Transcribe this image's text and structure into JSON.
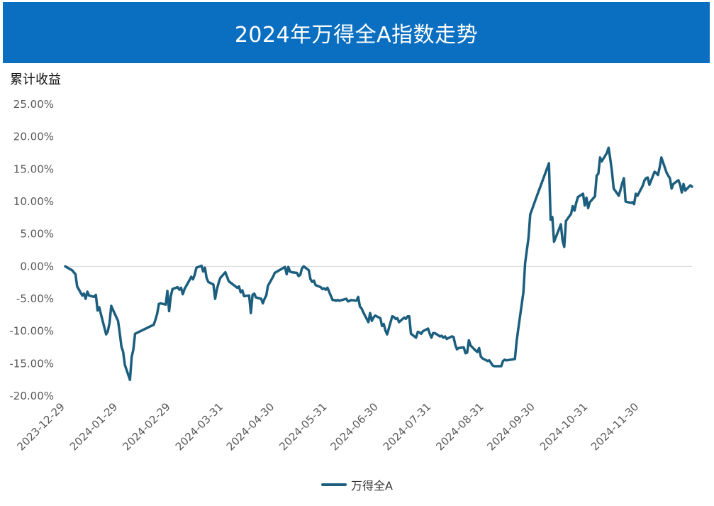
{
  "chart_data": {
    "type": "line",
    "title": "2024年万得全A指数走势",
    "ylabel": "累计收益",
    "xlabel": "",
    "ylim": [
      -20,
      25
    ],
    "yticks": [
      25,
      20,
      15,
      10,
      5,
      0,
      -5,
      -10,
      -15,
      -20
    ],
    "ytick_labels": [
      "25.00%",
      "20.00%",
      "15.00%",
      "10.00%",
      "5.00%",
      "0.00%",
      "-5.00%",
      "-10.00%",
      "-15.00%",
      "-20.00%"
    ],
    "xlim": [
      "2023-12-29",
      "2024-12-31"
    ],
    "xticks": [
      "2023-12-29",
      "2024-01-29",
      "2024-02-29",
      "2024-03-31",
      "2024-04-30",
      "2024-05-31",
      "2024-06-30",
      "2024-07-31",
      "2024-08-31",
      "2024-09-30",
      "2024-10-31",
      "2024-11-30"
    ],
    "legend_position": "bottom",
    "line_color": "#1B5E7E",
    "header_color": "#0B6FC1",
    "grid": false,
    "zero_line": true,
    "series": [
      {
        "name": "万得全A",
        "points": [
          [
            "2023-12-29",
            0.0
          ],
          [
            "2024-01-02",
            -0.6
          ],
          [
            "2024-01-04",
            -1.2
          ],
          [
            "2024-01-05",
            -3.1
          ],
          [
            "2024-01-08",
            -4.5
          ],
          [
            "2024-01-09",
            -4.2
          ],
          [
            "2024-01-10",
            -5.0
          ],
          [
            "2024-01-11",
            -3.9
          ],
          [
            "2024-01-12",
            -4.5
          ],
          [
            "2024-01-15",
            -4.7
          ],
          [
            "2024-01-16",
            -4.4
          ],
          [
            "2024-01-17",
            -6.8
          ],
          [
            "2024-01-18",
            -6.3
          ],
          [
            "2024-01-19",
            -7.4
          ],
          [
            "2024-01-22",
            -10.5
          ],
          [
            "2024-01-23",
            -10.0
          ],
          [
            "2024-01-24",
            -8.7
          ],
          [
            "2024-01-25",
            -6.1
          ],
          [
            "2024-01-26",
            -6.7
          ],
          [
            "2024-01-29",
            -8.4
          ],
          [
            "2024-01-30",
            -10.3
          ],
          [
            "2024-01-31",
            -12.4
          ],
          [
            "2024-02-01",
            -13.2
          ],
          [
            "2024-02-02",
            -15.2
          ],
          [
            "2024-02-05",
            -17.5
          ],
          [
            "2024-02-06",
            -14.0
          ],
          [
            "2024-02-07",
            -12.8
          ],
          [
            "2024-02-08",
            -10.4
          ],
          [
            "2024-02-19",
            -9.0
          ],
          [
            "2024-02-20",
            -8.2
          ],
          [
            "2024-02-21",
            -7.3
          ],
          [
            "2024-02-22",
            -5.8
          ],
          [
            "2024-02-23",
            -5.7
          ],
          [
            "2024-02-26",
            -5.9
          ],
          [
            "2024-02-27",
            -3.8
          ],
          [
            "2024-02-28",
            -6.9
          ],
          [
            "2024-02-29",
            -4.6
          ],
          [
            "2024-03-01",
            -3.5
          ],
          [
            "2024-03-04",
            -3.2
          ],
          [
            "2024-03-05",
            -3.6
          ],
          [
            "2024-03-06",
            -3.3
          ],
          [
            "2024-03-07",
            -4.3
          ],
          [
            "2024-03-08",
            -3.5
          ],
          [
            "2024-03-11",
            -2.1
          ],
          [
            "2024-03-12",
            -1.6
          ],
          [
            "2024-03-13",
            -2.0
          ],
          [
            "2024-03-14",
            -1.3
          ],
          [
            "2024-03-15",
            -0.2
          ],
          [
            "2024-03-18",
            0.1
          ],
          [
            "2024-03-19",
            -0.8
          ],
          [
            "2024-03-20",
            -0.2
          ],
          [
            "2024-03-21",
            -1.8
          ],
          [
            "2024-03-22",
            -2.4
          ],
          [
            "2024-03-25",
            -2.8
          ],
          [
            "2024-03-26",
            -5.0
          ],
          [
            "2024-03-27",
            -3.6
          ],
          [
            "2024-03-28",
            -2.6
          ],
          [
            "2024-03-29",
            -1.8
          ],
          [
            "2024-04-01",
            -0.9
          ],
          [
            "2024-04-02",
            -1.6
          ],
          [
            "2024-04-03",
            -2.3
          ],
          [
            "2024-04-08",
            -3.3
          ],
          [
            "2024-04-09",
            -3.1
          ],
          [
            "2024-04-10",
            -4.0
          ],
          [
            "2024-04-11",
            -3.7
          ],
          [
            "2024-04-12",
            -4.6
          ],
          [
            "2024-04-15",
            -4.5
          ],
          [
            "2024-04-16",
            -7.2
          ],
          [
            "2024-04-17",
            -4.4
          ],
          [
            "2024-04-18",
            -4.2
          ],
          [
            "2024-04-19",
            -4.8
          ],
          [
            "2024-04-22",
            -5.0
          ],
          [
            "2024-04-23",
            -5.7
          ],
          [
            "2024-04-24",
            -5.0
          ],
          [
            "2024-04-25",
            -4.5
          ],
          [
            "2024-04-26",
            -3.0
          ],
          [
            "2024-04-29",
            -1.6
          ],
          [
            "2024-04-30",
            -1.0
          ],
          [
            "2024-05-06",
            -0.1
          ],
          [
            "2024-05-07",
            -1.2
          ],
          [
            "2024-05-08",
            -0.1
          ],
          [
            "2024-05-09",
            -0.8
          ],
          [
            "2024-05-10",
            -0.9
          ],
          [
            "2024-05-13",
            -1.0
          ],
          [
            "2024-05-14",
            -1.5
          ],
          [
            "2024-05-15",
            -1.3
          ],
          [
            "2024-05-16",
            -0.3
          ],
          [
            "2024-05-17",
            0.0
          ],
          [
            "2024-05-20",
            -0.6
          ],
          [
            "2024-05-21",
            -2.0
          ],
          [
            "2024-05-22",
            -2.4
          ],
          [
            "2024-05-23",
            -2.2
          ],
          [
            "2024-05-24",
            -2.9
          ],
          [
            "2024-05-27",
            -3.2
          ],
          [
            "2024-05-28",
            -3.5
          ],
          [
            "2024-05-29",
            -3.4
          ],
          [
            "2024-05-30",
            -3.6
          ],
          [
            "2024-05-31",
            -3.3
          ],
          [
            "2024-06-03",
            -5.2
          ],
          [
            "2024-06-04",
            -5.2
          ],
          [
            "2024-06-05",
            -5.3
          ],
          [
            "2024-06-06",
            -5.2
          ],
          [
            "2024-06-07",
            -5.3
          ],
          [
            "2024-06-11",
            -5.0
          ],
          [
            "2024-06-12",
            -5.4
          ],
          [
            "2024-06-13",
            -5.3
          ],
          [
            "2024-06-14",
            -5.2
          ],
          [
            "2024-06-17",
            -5.3
          ],
          [
            "2024-06-18",
            -4.7
          ],
          [
            "2024-06-19",
            -6.2
          ],
          [
            "2024-06-20",
            -6.5
          ],
          [
            "2024-06-21",
            -7.1
          ],
          [
            "2024-06-24",
            -8.6
          ],
          [
            "2024-06-25",
            -7.2
          ],
          [
            "2024-06-26",
            -8.4
          ],
          [
            "2024-06-27",
            -7.9
          ],
          [
            "2024-06-28",
            -7.6
          ],
          [
            "2024-07-01",
            -8.0
          ],
          [
            "2024-07-02",
            -9.2
          ],
          [
            "2024-07-03",
            -8.9
          ],
          [
            "2024-07-04",
            -9.9
          ],
          [
            "2024-07-05",
            -10.5
          ],
          [
            "2024-07-08",
            -7.7
          ],
          [
            "2024-07-09",
            -7.8
          ],
          [
            "2024-07-10",
            -8.1
          ],
          [
            "2024-07-11",
            -8.0
          ],
          [
            "2024-07-12",
            -8.6
          ],
          [
            "2024-07-15",
            -7.9
          ],
          [
            "2024-07-16",
            -8.1
          ],
          [
            "2024-07-17",
            -7.7
          ],
          [
            "2024-07-18",
            -7.7
          ],
          [
            "2024-07-19",
            -10.4
          ],
          [
            "2024-07-22",
            -11.0
          ],
          [
            "2024-07-23",
            -10.1
          ],
          [
            "2024-07-24",
            -10.2
          ],
          [
            "2024-07-25",
            -10.4
          ],
          [
            "2024-07-26",
            -10.0
          ],
          [
            "2024-07-29",
            -9.6
          ],
          [
            "2024-07-30",
            -10.4
          ],
          [
            "2024-07-31",
            -11.0
          ],
          [
            "2024-08-01",
            -10.3
          ],
          [
            "2024-08-02",
            -10.3
          ],
          [
            "2024-08-05",
            -10.8
          ],
          [
            "2024-08-06",
            -10.7
          ],
          [
            "2024-08-07",
            -11.0
          ],
          [
            "2024-08-08",
            -10.8
          ],
          [
            "2024-08-09",
            -11.2
          ],
          [
            "2024-08-12",
            -10.8
          ],
          [
            "2024-08-13",
            -10.9
          ],
          [
            "2024-08-14",
            -12.1
          ],
          [
            "2024-08-15",
            -12.8
          ],
          [
            "2024-08-16",
            -12.6
          ],
          [
            "2024-08-19",
            -12.5
          ],
          [
            "2024-08-20",
            -13.4
          ],
          [
            "2024-08-21",
            -13.3
          ],
          [
            "2024-08-22",
            -11.4
          ],
          [
            "2024-08-23",
            -12.2
          ],
          [
            "2024-08-26",
            -13.0
          ],
          [
            "2024-08-27",
            -13.2
          ],
          [
            "2024-08-28",
            -12.6
          ],
          [
            "2024-08-29",
            -13.9
          ],
          [
            "2024-08-30",
            -14.2
          ],
          [
            "2024-09-02",
            -14.6
          ],
          [
            "2024-09-03",
            -14.5
          ],
          [
            "2024-09-04",
            -14.9
          ],
          [
            "2024-09-05",
            -15.3
          ],
          [
            "2024-09-06",
            -15.4
          ],
          [
            "2024-09-10",
            -15.4
          ],
          [
            "2024-09-11",
            -14.6
          ],
          [
            "2024-09-12",
            -14.4
          ],
          [
            "2024-09-13",
            -14.5
          ],
          [
            "2024-09-18",
            -14.3
          ],
          [
            "2024-09-19",
            -11.6
          ],
          [
            "2024-09-20",
            -9.6
          ],
          [
            "2024-09-23",
            -4.0
          ],
          [
            "2024-09-24",
            0.5
          ],
          [
            "2024-09-26",
            4.4
          ],
          [
            "2024-09-27",
            8.0
          ],
          [
            "2024-09-30",
            10.2
          ],
          [
            "2024-10-08",
            15.9
          ],
          [
            "2024-10-09",
            7.2
          ],
          [
            "2024-10-10",
            7.6
          ],
          [
            "2024-10-11",
            3.8
          ],
          [
            "2024-10-14",
            5.8
          ],
          [
            "2024-10-15",
            6.5
          ],
          [
            "2024-10-16",
            4.0
          ],
          [
            "2024-10-17",
            3.0
          ],
          [
            "2024-10-18",
            7.0
          ],
          [
            "2024-10-21",
            8.1
          ],
          [
            "2024-10-22",
            9.3
          ],
          [
            "2024-10-23",
            8.6
          ],
          [
            "2024-10-24",
            9.8
          ],
          [
            "2024-10-25",
            10.7
          ],
          [
            "2024-10-28",
            11.2
          ],
          [
            "2024-10-29",
            9.4
          ],
          [
            "2024-10-30",
            10.6
          ],
          [
            "2024-10-31",
            9.0
          ],
          [
            "2024-11-01",
            9.9
          ],
          [
            "2024-11-04",
            10.8
          ],
          [
            "2024-11-05",
            14.0
          ],
          [
            "2024-11-06",
            14.3
          ],
          [
            "2024-11-07",
            16.8
          ],
          [
            "2024-11-08",
            16.2
          ],
          [
            "2024-11-11",
            17.5
          ],
          [
            "2024-11-12",
            18.3
          ],
          [
            "2024-11-13",
            16.6
          ],
          [
            "2024-11-14",
            14.6
          ],
          [
            "2024-11-15",
            12.0
          ],
          [
            "2024-11-18",
            10.9
          ],
          [
            "2024-11-19",
            11.8
          ],
          [
            "2024-11-20",
            12.8
          ],
          [
            "2024-11-21",
            13.6
          ],
          [
            "2024-11-22",
            10.0
          ],
          [
            "2024-11-25",
            9.8
          ],
          [
            "2024-11-26",
            9.9
          ],
          [
            "2024-11-27",
            9.6
          ],
          [
            "2024-11-28",
            11.2
          ],
          [
            "2024-11-29",
            10.9
          ],
          [
            "2024-12-02",
            12.4
          ],
          [
            "2024-12-03",
            13.2
          ],
          [
            "2024-12-04",
            13.6
          ],
          [
            "2024-12-05",
            13.7
          ],
          [
            "2024-12-06",
            12.6
          ],
          [
            "2024-12-09",
            14.6
          ],
          [
            "2024-12-10",
            14.4
          ],
          [
            "2024-12-11",
            14.1
          ],
          [
            "2024-12-12",
            15.3
          ],
          [
            "2024-12-13",
            16.8
          ],
          [
            "2024-12-16",
            14.5
          ],
          [
            "2024-12-17",
            14.0
          ],
          [
            "2024-12-18",
            13.6
          ],
          [
            "2024-12-19",
            12.0
          ],
          [
            "2024-12-20",
            12.7
          ],
          [
            "2024-12-23",
            13.3
          ],
          [
            "2024-12-24",
            12.6
          ],
          [
            "2024-12-25",
            11.4
          ],
          [
            "2024-12-26",
            12.7
          ],
          [
            "2024-12-27",
            11.7
          ],
          [
            "2024-12-30",
            12.5
          ],
          [
            "2024-12-31",
            12.3
          ]
        ]
      }
    ]
  }
}
